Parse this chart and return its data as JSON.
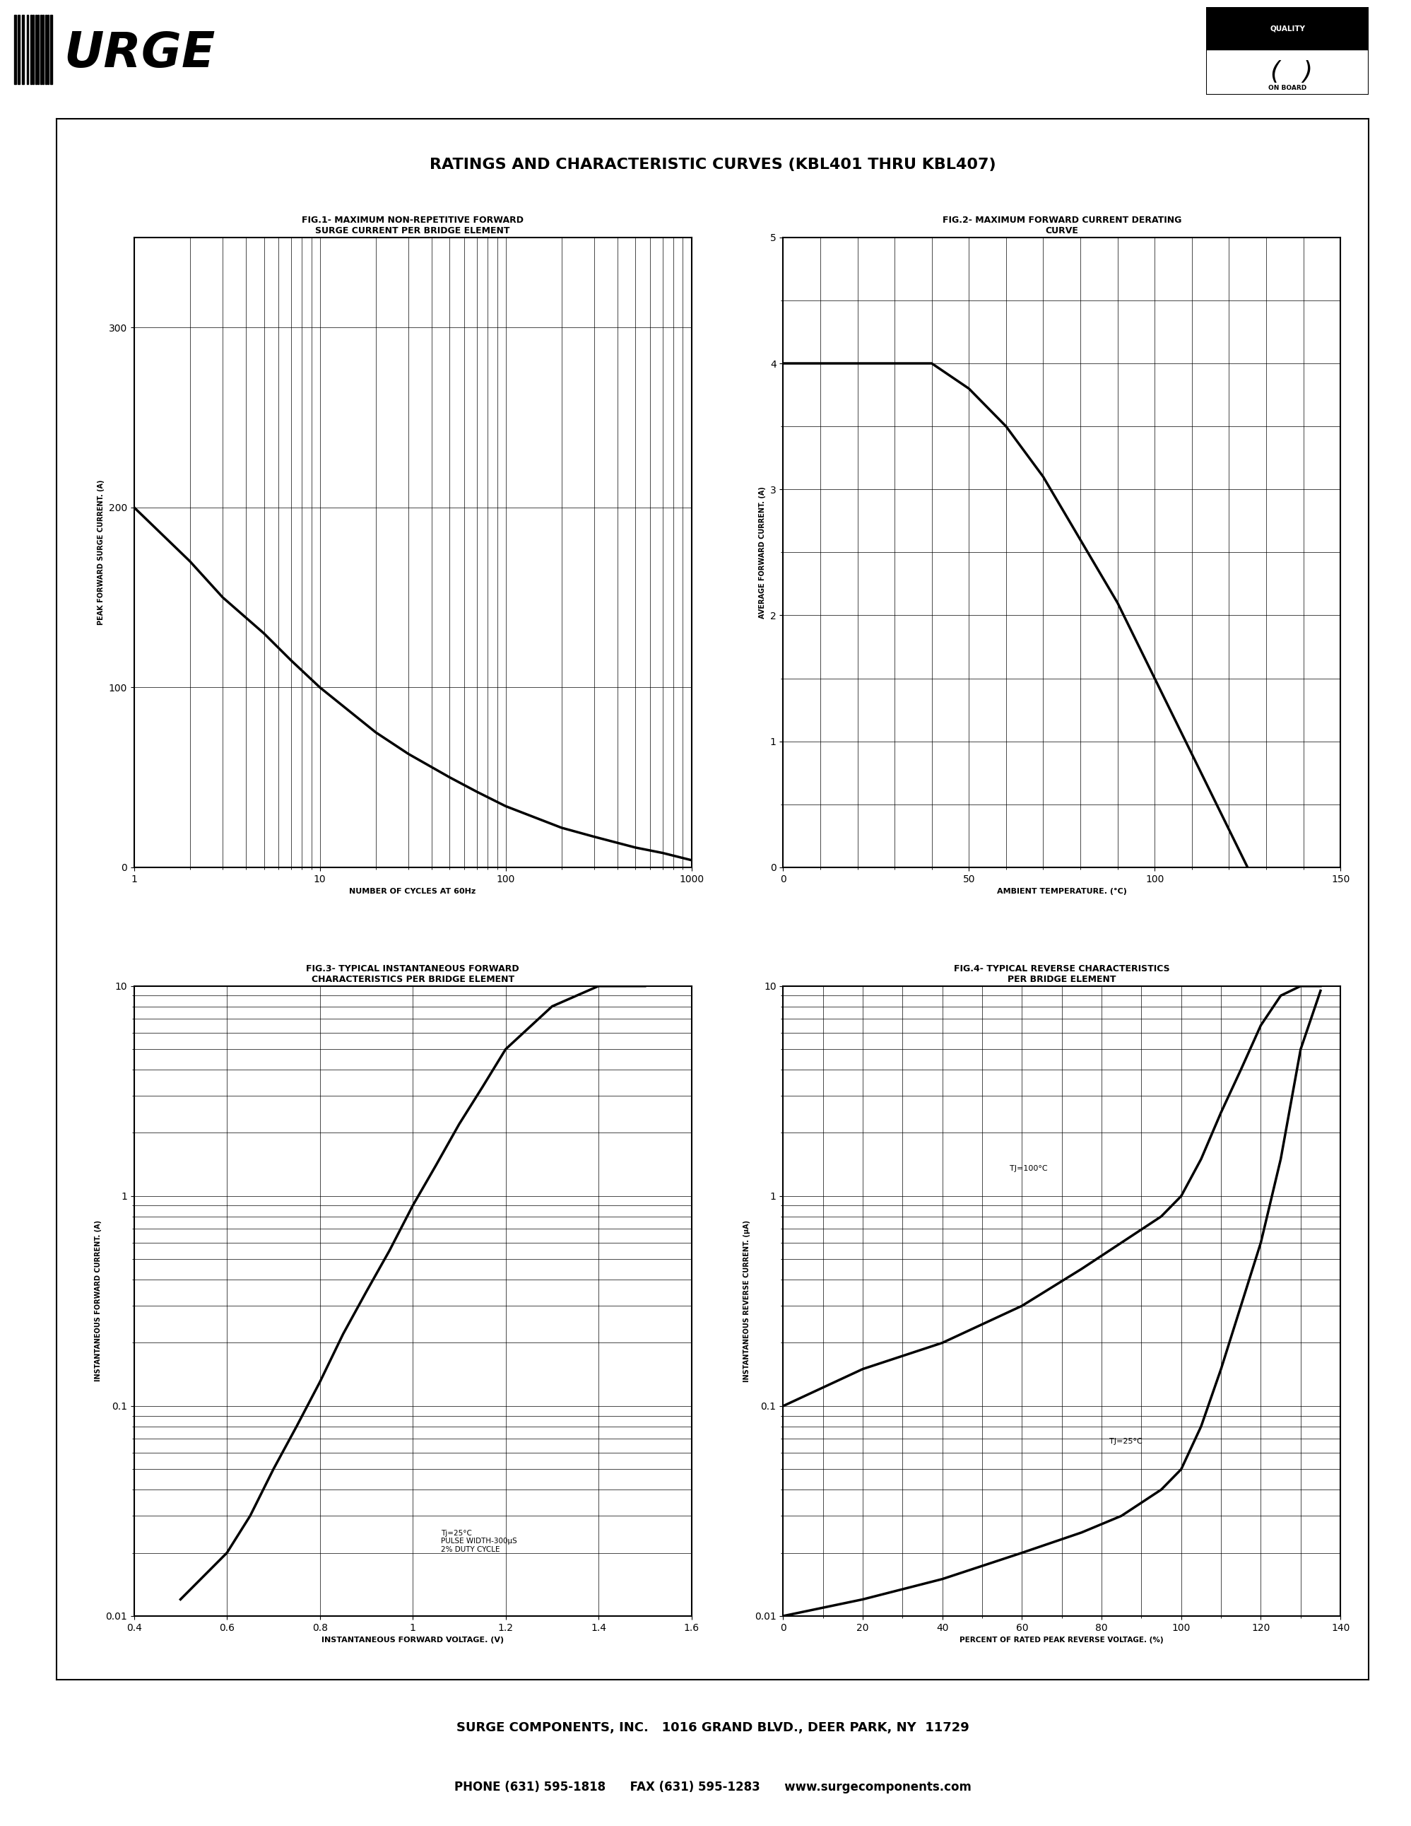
{
  "page_title": "RATINGS AND CHARACTERISTIC CURVES (KBL401 THRU KBL407)",
  "fig1_title1": "FIG.1- MAXIMUM NON-REPETITIVE FORWARD",
  "fig1_title2": "SURGE CURRENT PER BRIDGE ELEMENT",
  "fig1_ylabel": "PEAK FORWARD SURGE CURRENT. (A)",
  "fig1_xlabel": "NUMBER OF CYCLES AT 60Hz",
  "fig1_xlim": [
    1,
    1000
  ],
  "fig1_ylim": [
    0,
    350
  ],
  "fig1_yticks": [
    0,
    100,
    200,
    300
  ],
  "fig1_curve_x": [
    1,
    2,
    3,
    5,
    7,
    10,
    20,
    30,
    50,
    70,
    100,
    200,
    300,
    500,
    700,
    1000
  ],
  "fig1_curve_y": [
    200,
    170,
    150,
    130,
    115,
    100,
    75,
    63,
    50,
    42,
    34,
    22,
    17,
    11,
    8,
    4
  ],
  "fig2_title1": "FIG.2- MAXIMUM FORWARD CURRENT DERATING",
  "fig2_title2": "CURVE",
  "fig2_ylabel": "AVERAGE FORWARD CURRENT. (A)",
  "fig2_xlabel": "AMBIENT TEMPERATURE. (°C)",
  "fig2_xlim": [
    0,
    150
  ],
  "fig2_ylim": [
    0,
    5
  ],
  "fig2_xticks": [
    0,
    50,
    100,
    150
  ],
  "fig2_yticks": [
    0,
    1,
    2,
    3,
    4,
    5
  ],
  "fig2_curve_x": [
    0,
    25,
    40,
    50,
    60,
    70,
    80,
    90,
    100,
    110,
    120,
    125
  ],
  "fig2_curve_y": [
    4.0,
    4.0,
    4.0,
    3.8,
    3.5,
    3.1,
    2.6,
    2.1,
    1.5,
    0.9,
    0.3,
    0.0
  ],
  "fig3_title1": "FIG.3- TYPICAL INSTANTANEOUS FORWARD",
  "fig3_title2": "CHARACTERISTICS PER BRIDGE ELEMENT",
  "fig3_ylabel": "INSTANTANEOUS FORWARD CURRENT. (A)",
  "fig3_xlabel": "INSTANTANEOUS FORWARD VOLTAGE. (V)",
  "fig3_xlim": [
    0.4,
    1.6
  ],
  "fig3_ylim_log": [
    0.01,
    10
  ],
  "fig3_xticks": [
    0.4,
    0.6,
    0.8,
    1.0,
    1.2,
    1.4,
    1.6
  ],
  "fig3_curve_x": [
    0.5,
    0.6,
    0.65,
    0.7,
    0.75,
    0.8,
    0.85,
    0.9,
    0.95,
    1.0,
    1.05,
    1.1,
    1.15,
    1.2,
    1.3,
    1.4,
    1.5
  ],
  "fig3_curve_y": [
    0.012,
    0.02,
    0.03,
    0.05,
    0.08,
    0.13,
    0.22,
    0.35,
    0.55,
    0.9,
    1.4,
    2.2,
    3.3,
    5.0,
    8.0,
    10.0,
    10.0
  ],
  "fig3_annotation": "Tj=25°C\nPULSE WIDTH-300μS\n2% DUTY CYCLE",
  "fig4_title1": "FIG.4- TYPICAL REVERSE CHARACTERISTICS",
  "fig4_title2": "PER BRIDGE ELEMENT",
  "fig4_ylabel": "INSTANTANEOUS REVERSE CURRENT. (μA)",
  "fig4_xlabel": "PERCENT OF RATED PEAK REVERSE VOLTAGE. (%)",
  "fig4_xlim": [
    0,
    140
  ],
  "fig4_ylim_log": [
    0.01,
    10.0
  ],
  "fig4_xticks": [
    0,
    20,
    40,
    60,
    80,
    100,
    120,
    140
  ],
  "fig4_curve100_x": [
    0,
    20,
    40,
    60,
    75,
    85,
    95,
    100,
    105,
    110,
    115,
    120,
    125,
    130,
    135
  ],
  "fig4_curve100_y": [
    0.1,
    0.15,
    0.2,
    0.3,
    0.45,
    0.6,
    0.8,
    1.0,
    1.5,
    2.5,
    4.0,
    6.5,
    9.0,
    10.0,
    10.0
  ],
  "fig4_curve25_x": [
    0,
    20,
    40,
    60,
    75,
    85,
    95,
    100,
    105,
    110,
    115,
    120,
    125,
    130,
    135
  ],
  "fig4_curve25_y": [
    0.01,
    0.012,
    0.015,
    0.02,
    0.025,
    0.03,
    0.04,
    0.05,
    0.08,
    0.15,
    0.3,
    0.6,
    1.5,
    5.0,
    9.5
  ],
  "fig4_label100": "TJ=100°C",
  "fig4_label25": "TJ=25°C",
  "footer_line1": "SURGE COMPONENTS, INC.   1016 GRAND BLVD., DEER PARK, NY  11729",
  "footer_line2": "PHONE (631) 595-1818      FAX (631) 595-1283      www.surgecomponents.com",
  "bg_color": "#ffffff",
  "grid_color": "#000000",
  "curve_color": "#000000",
  "curve_linewidth": 2.5
}
